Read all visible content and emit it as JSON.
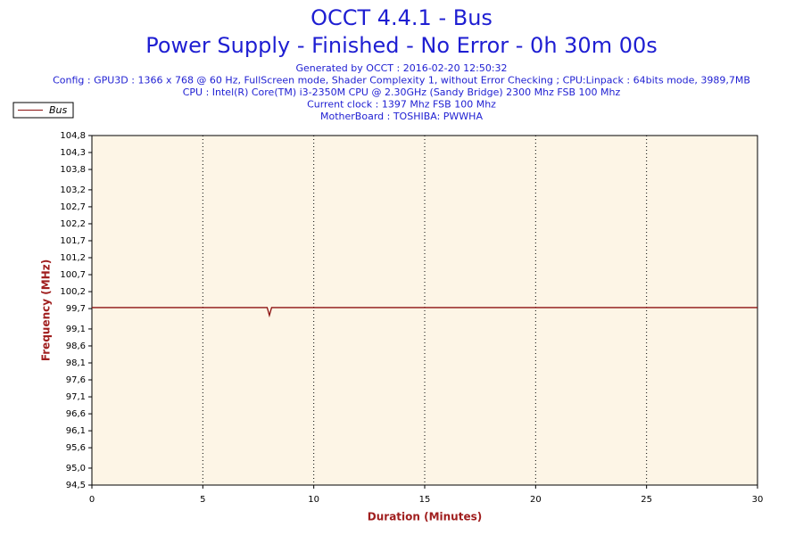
{
  "chart_data": {
    "type": "line",
    "title": "OCCT 4.4.1 - Bus",
    "subtitle": "Power Supply - Finished - No Error - 0h 30m 00s",
    "info": [
      "Generated by OCCT : 2016-02-20 12:50:32",
      "Config : GPU3D : 1366 x 768 @ 60 Hz, FullScreen mode, Shader Complexity 1, without Error Checking ; CPU:Linpack : 64bits mode, 3989,7MB",
      "CPU : Intel(R) Core(TM) i3-2350M CPU @ 2.30GHz (Sandy Bridge) 2300 Mhz FSB 100 Mhz",
      "Current clock : 1397 Mhz FSB 100 Mhz",
      "MotherBoard : TOSHIBA: PWWHA"
    ],
    "x_label": "Duration (Minutes)",
    "y_label": "Frequency (MHz)",
    "x": [
      0,
      7.9,
      8.0,
      8.1,
      30
    ],
    "series": [
      {
        "name": "Bus",
        "color": "#8b1010",
        "values": [
          99.73,
          99.73,
          99.5,
          99.73,
          99.73
        ]
      }
    ],
    "xlim": [
      0,
      30
    ],
    "xticks": [
      0,
      5,
      10,
      15,
      20,
      25,
      30
    ],
    "ylim": [
      94.5,
      104.8
    ],
    "yticks": [
      {
        "value": 94.5,
        "label": "94,5"
      },
      {
        "value": 95.0,
        "label": "95,0"
      },
      {
        "value": 95.6,
        "label": "95,6"
      },
      {
        "value": 96.1,
        "label": "96,1"
      },
      {
        "value": 96.6,
        "label": "96,6"
      },
      {
        "value": 97.1,
        "label": "97,1"
      },
      {
        "value": 97.6,
        "label": "97,6"
      },
      {
        "value": 98.1,
        "label": "98,1"
      },
      {
        "value": 98.6,
        "label": "98,6"
      },
      {
        "value": 99.1,
        "label": "99,1"
      },
      {
        "value": 99.7,
        "label": "99,7"
      },
      {
        "value": 100.2,
        "label": "100,2"
      },
      {
        "value": 100.7,
        "label": "100,7"
      },
      {
        "value": 101.2,
        "label": "101,2"
      },
      {
        "value": 101.7,
        "label": "101,7"
      },
      {
        "value": 102.2,
        "label": "102,2"
      },
      {
        "value": 102.7,
        "label": "102,7"
      },
      {
        "value": 103.2,
        "label": "103,2"
      },
      {
        "value": 103.8,
        "label": "103,8"
      },
      {
        "value": 104.3,
        "label": "104,3"
      },
      {
        "value": 104.8,
        "label": "104,8"
      }
    ],
    "grid": true,
    "legend": "top-left",
    "background": "#fdf5e6"
  }
}
